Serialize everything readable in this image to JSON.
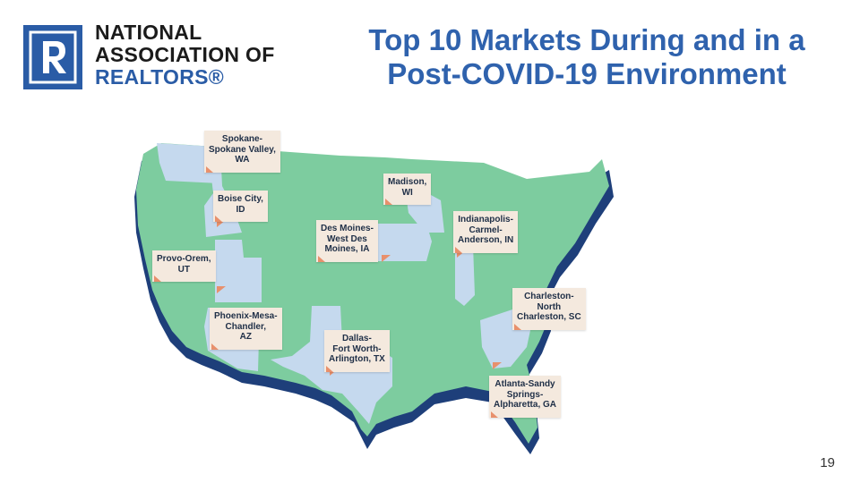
{
  "logo": {
    "line1": "NATIONAL",
    "line2": "ASSOCIATION OF",
    "line3": "REALTORS®"
  },
  "title": {
    "line1": "Top 10 Markets During and in a",
    "line2": "Post-COVID-19 Environment"
  },
  "colors": {
    "brand_blue": "#2a5ca6",
    "land": "#7dcc9f",
    "highlighted_state": "#c5d9ee",
    "shadow": "#1e3f7a",
    "callout_bg": "#f4e9de",
    "callout_marker": "#e8906c"
  },
  "markets": [
    {
      "id": "spokane",
      "l1": "Spokane-",
      "l2": "Spokane Valley,",
      "l3": "WA"
    },
    {
      "id": "boise",
      "l1": "Boise City,",
      "l2": "ID",
      "l3": ""
    },
    {
      "id": "provo",
      "l1": "Provo-Orem,",
      "l2": "UT",
      "l3": ""
    },
    {
      "id": "phoenix",
      "l1": "Phoenix-Mesa-",
      "l2": "Chandler,",
      "l3": "AZ"
    },
    {
      "id": "desmoines",
      "l1": "Des Moines-",
      "l2": "West Des",
      "l3": "Moines, IA"
    },
    {
      "id": "madison",
      "l1": "Madison,",
      "l2": "WI",
      "l3": ""
    },
    {
      "id": "indianapolis",
      "l1": "Indianapolis-",
      "l2": "Carmel-",
      "l3": "Anderson, IN"
    },
    {
      "id": "charleston",
      "l1": "Charleston-",
      "l2": "North",
      "l3": "Charleston, SC"
    },
    {
      "id": "dallas",
      "l1": "Dallas-",
      "l2": "Fort Worth-",
      "l3": "Arlington, TX"
    },
    {
      "id": "atlanta",
      "l1": "Atlanta-Sandy",
      "l2": "Springs-",
      "l3": "Alpharetta, GA"
    }
  ],
  "page_number": "19"
}
